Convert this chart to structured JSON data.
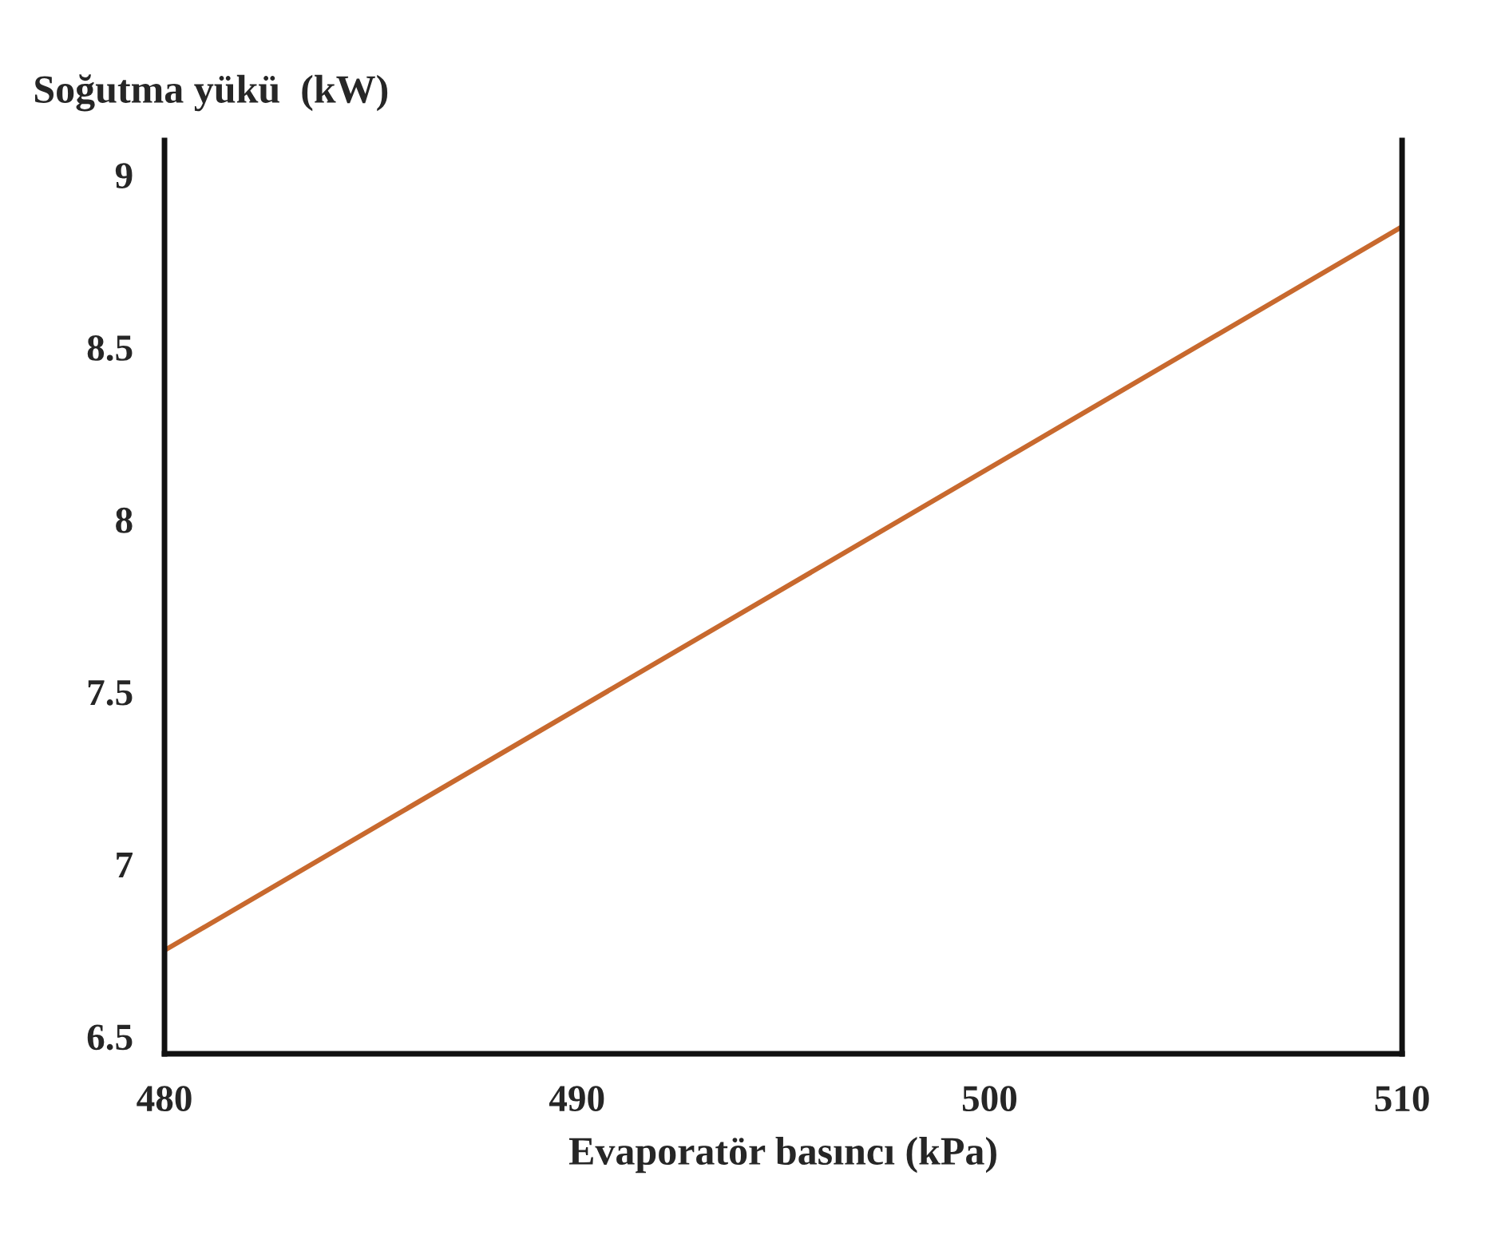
{
  "chart_data": {
    "type": "line",
    "xlabel": "Evaporatör basıncı (kPa)",
    "ylabel": "Soğutma yükü  (kW)",
    "x": [
      480,
      510
    ],
    "series": [
      {
        "color": "#c8692e",
        "values": [
          6.75,
          8.85
        ]
      }
    ],
    "xlim": [
      480,
      510
    ],
    "xticks": [
      480,
      490,
      500,
      510
    ],
    "ylim": [
      6.45,
      9.1
    ],
    "yticks": [
      6.5,
      7,
      7.5,
      8,
      8.5,
      9
    ],
    "grid": false,
    "legend": false
  }
}
